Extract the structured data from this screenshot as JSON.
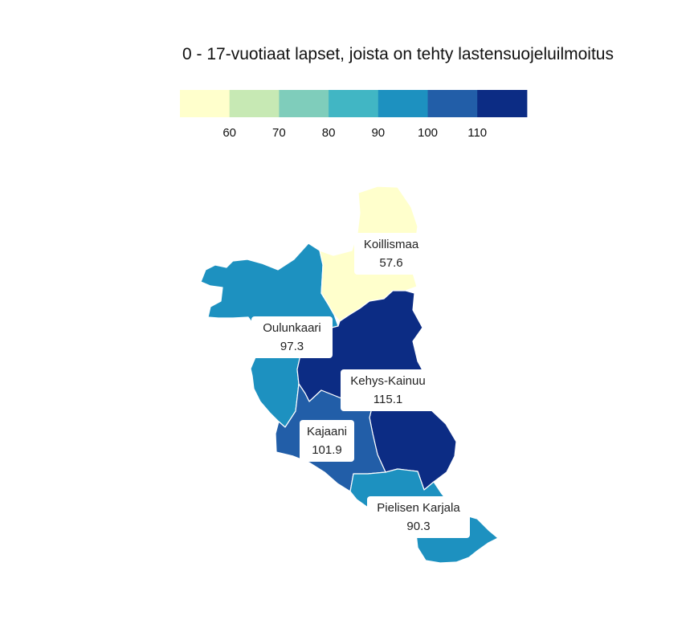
{
  "map": {
    "title": "0 - 17-vuotiaat lapset, joista on tehty lastensuojeluilmoitus",
    "legend": {
      "colors": [
        "#ffffcc",
        "#c7e9b4",
        "#7fcdbb",
        "#41b6c4",
        "#1d91c0",
        "#225ea8",
        "#0c2c84"
      ],
      "thresholds": [
        60,
        70,
        80,
        90,
        100,
        110
      ],
      "tick_labels": [
        "60",
        "70",
        "80",
        "90",
        "100",
        "110"
      ]
    },
    "regions": [
      {
        "name": "Koillismaa",
        "value": 57.6,
        "value_label": "57.6",
        "color": "#ffffcc"
      },
      {
        "name": "Oulunkaari",
        "value": 97.3,
        "value_label": "97.3",
        "color": "#1d91c0"
      },
      {
        "name": "Kehys-Kainuu",
        "value": 115.1,
        "value_label": "115.1",
        "color": "#0c2c84"
      },
      {
        "name": "Kajaani",
        "value": 101.9,
        "value_label": "101.9",
        "color": "#225ea8"
      },
      {
        "name": "Pielisen Karjala",
        "value": 90.3,
        "value_label": "90.3",
        "color": "#1d91c0"
      }
    ]
  }
}
